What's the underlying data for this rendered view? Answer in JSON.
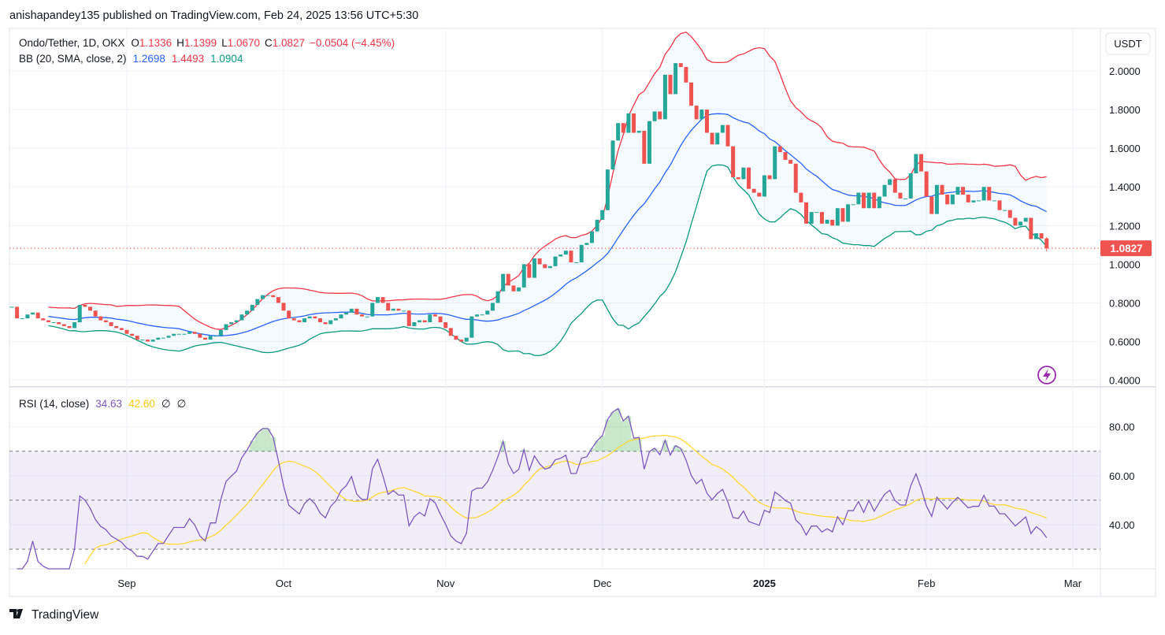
{
  "header": {
    "publisher_line": "anishapandey135 published on TradingView.com, Feb 24, 2025 13:56 UTC+5:30"
  },
  "legend": {
    "symbol": "Ondo/Tether, 1D, OKX",
    "o_label": "O",
    "o": "1.1336",
    "h_label": "H",
    "h": "1.1399",
    "l_label": "L",
    "l": "1.0670",
    "c_label": "C",
    "c": "1.0827",
    "change": "−0.0504 (−4.45%)",
    "bb_title": "BB (20, SMA, close, 2)",
    "bb_basis": "1.2698",
    "bb_upper": "1.4493",
    "bb_lower": "1.0904",
    "rsi_title": "RSI (14, close)",
    "rsi_value": "34.63",
    "rsi_ma": "42.60",
    "rsi_extra1": "∅",
    "rsi_extra2": "∅"
  },
  "currency_label": "USDT",
  "last_price_label": "1.0827",
  "footer": {
    "logo_text": "TradingView"
  },
  "icons": {
    "alert": "lightning-icon",
    "logo": "tradingview-logo-icon"
  },
  "colors": {
    "up": "#26a69a",
    "down": "#ef5350",
    "bb_basis": "#2962ff",
    "bb_upper": "#f23645",
    "bb_lower": "#089981",
    "rsi": "#7e57c2",
    "rsi_ma": "#fdd835"
  },
  "chart_data": {
    "type": "candlestick",
    "period": "1D",
    "date_range": [
      "2024-08-10",
      "2025-02-24"
    ],
    "price_axis": {
      "ticks": [
        "2.0000",
        "1.8000",
        "1.6000",
        "1.4000",
        "1.2000",
        "1.0000",
        "0.8000",
        "0.6000",
        "0.4000"
      ],
      "range": [
        0.37,
        2.22
      ]
    },
    "time_axis": {
      "ticks": [
        {
          "label": "Sep",
          "date": "2024-09-01",
          "bold": false
        },
        {
          "label": "Oct",
          "date": "2024-10-01",
          "bold": false
        },
        {
          "label": "Nov",
          "date": "2024-11-01",
          "bold": false
        },
        {
          "label": "Dec",
          "date": "2024-12-01",
          "bold": false
        },
        {
          "label": "2025",
          "date": "2025-01-01",
          "bold": true
        },
        {
          "label": "Feb",
          "date": "2025-02-01",
          "bold": false
        },
        {
          "label": "Mar",
          "date": "2025-03-01",
          "bold": false
        }
      ]
    },
    "close": [
      0.78,
      0.72,
      0.72,
      0.74,
      0.75,
      0.72,
      0.71,
      0.7,
      0.7,
      0.69,
      0.68,
      0.67,
      0.7,
      0.79,
      0.78,
      0.76,
      0.73,
      0.71,
      0.7,
      0.68,
      0.67,
      0.66,
      0.64,
      0.63,
      0.61,
      0.61,
      0.6,
      0.61,
      0.62,
      0.62,
      0.63,
      0.64,
      0.64,
      0.64,
      0.65,
      0.64,
      0.62,
      0.61,
      0.63,
      0.63,
      0.66,
      0.69,
      0.7,
      0.71,
      0.74,
      0.76,
      0.79,
      0.82,
      0.84,
      0.84,
      0.83,
      0.8,
      0.76,
      0.72,
      0.71,
      0.7,
      0.72,
      0.73,
      0.72,
      0.7,
      0.69,
      0.71,
      0.72,
      0.74,
      0.75,
      0.77,
      0.74,
      0.73,
      0.73,
      0.8,
      0.83,
      0.8,
      0.76,
      0.77,
      0.76,
      0.76,
      0.68,
      0.7,
      0.71,
      0.7,
      0.74,
      0.73,
      0.7,
      0.67,
      0.63,
      0.61,
      0.6,
      0.62,
      0.73,
      0.74,
      0.74,
      0.76,
      0.8,
      0.86,
      0.95,
      0.89,
      0.86,
      0.88,
      1.0,
      0.93,
      1.03,
      1.0,
      0.98,
      0.99,
      1.04,
      1.05,
      1.07,
      1.01,
      1.01,
      1.1,
      1.11,
      1.17,
      1.23,
      1.28,
      1.49,
      1.64,
      1.73,
      1.68,
      1.78,
      1.68,
      1.69,
      1.52,
      1.74,
      1.79,
      1.75,
      1.98,
      1.88,
      2.04,
      2.02,
      1.94,
      1.82,
      1.75,
      1.8,
      1.68,
      1.62,
      1.68,
      1.72,
      1.61,
      1.45,
      1.44,
      1.5,
      1.39,
      1.37,
      1.35,
      1.46,
      1.44,
      1.61,
      1.58,
      1.54,
      1.52,
      1.37,
      1.32,
      1.21,
      1.27,
      1.27,
      1.21,
      1.23,
      1.2,
      1.29,
      1.22,
      1.31,
      1.31,
      1.37,
      1.29,
      1.37,
      1.29,
      1.35,
      1.41,
      1.44,
      1.37,
      1.34,
      1.34,
      1.47,
      1.57,
      1.48,
      1.35,
      1.26,
      1.41,
      1.36,
      1.31,
      1.36,
      1.4,
      1.36,
      1.32,
      1.33,
      1.33,
      1.4,
      1.33,
      1.33,
      1.28,
      1.28,
      1.24,
      1.2,
      1.22,
      1.24,
      1.13,
      1.16,
      1.1331,
      1.0827
    ],
    "last_candle": {
      "open": 1.1336,
      "high": 1.1399,
      "low": 1.067,
      "close": 1.0827
    },
    "bollinger": {
      "length": 20,
      "mult": 2
    },
    "rsi_pane": {
      "ticks": [
        "80.00",
        "60.00",
        "40.00"
      ],
      "range": [
        22,
        95
      ],
      "levels": [
        70,
        50,
        30
      ],
      "length": 14,
      "ma_length": 14
    }
  }
}
